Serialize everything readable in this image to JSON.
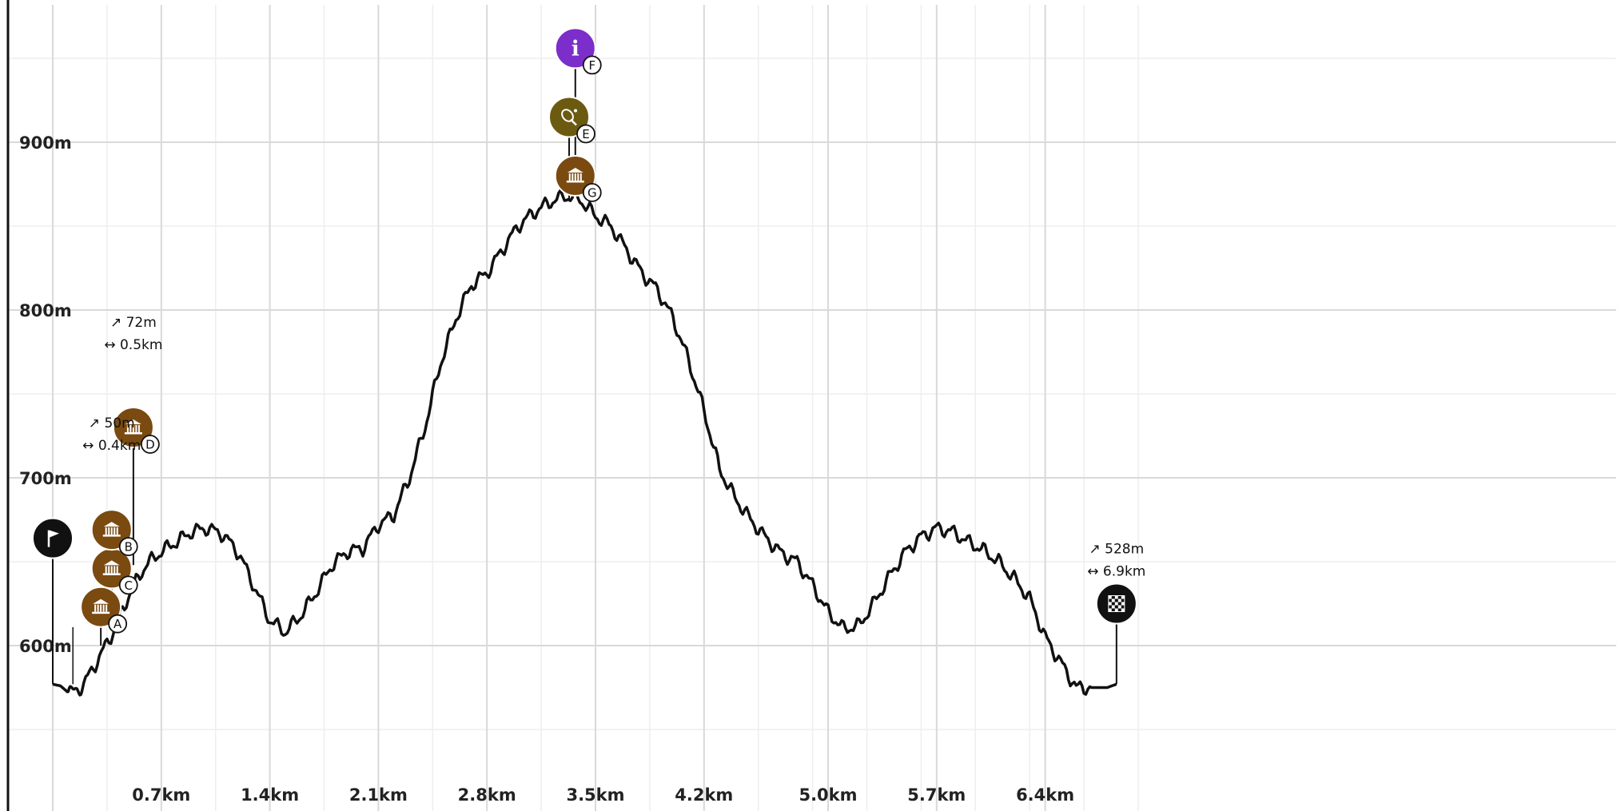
{
  "chart_data": {
    "type": "area",
    "title": "",
    "xlabel": "",
    "ylabel": "",
    "x_unit": "km",
    "y_unit": "m",
    "xlim": [
      0,
      7.0
    ],
    "ylim": [
      500,
      980
    ],
    "y_ticks": [
      {
        "value": 600,
        "label": "600m"
      },
      {
        "value": 700,
        "label": "700m"
      },
      {
        "value": 800,
        "label": "800m"
      },
      {
        "value": 900,
        "label": "900m"
      }
    ],
    "x_ticks": [
      {
        "value": 0.7,
        "label": "0.7km"
      },
      {
        "value": 1.4,
        "label": "1.4km"
      },
      {
        "value": 2.1,
        "label": "2.1km"
      },
      {
        "value": 2.8,
        "label": "2.8km"
      },
      {
        "value": 3.5,
        "label": "3.5km"
      },
      {
        "value": 4.2,
        "label": "4.2km"
      },
      {
        "value": 5.0,
        "label": "5.0km"
      },
      {
        "value": 5.7,
        "label": "5.7km"
      },
      {
        "value": 6.4,
        "label": "6.4km"
      }
    ],
    "grid": true,
    "series": [
      {
        "x": [
          0,
          0.05,
          0.1,
          0.15,
          0.2,
          0.3,
          0.4,
          0.5,
          0.6,
          0.7,
          0.8,
          0.9,
          1.0,
          1.1,
          1.2,
          1.3,
          1.4,
          1.5,
          1.6,
          1.7,
          1.8,
          1.9,
          2.0,
          2.1,
          2.2,
          2.3,
          2.4,
          2.5,
          2.6,
          2.7,
          2.8,
          2.9,
          3.0,
          3.1,
          3.2,
          3.3,
          3.4,
          3.5,
          3.6,
          3.7,
          3.8,
          3.9,
          4.0,
          4.1,
          4.2,
          4.3,
          4.4,
          4.5,
          4.6,
          4.7,
          4.8,
          4.9,
          5.0,
          5.1,
          5.2,
          5.3,
          5.4,
          5.5,
          5.6,
          5.7,
          5.8,
          5.9,
          6.0,
          6.1,
          6.2,
          6.3,
          6.4,
          6.5,
          6.6,
          6.7,
          6.8,
          6.86
        ],
        "y": [
          577,
          576,
          572,
          573,
          577,
          593,
          610,
          632,
          648,
          656,
          662,
          668,
          670,
          666,
          655,
          635,
          615,
          608,
          618,
          632,
          648,
          656,
          658,
          672,
          678,
          700,
          730,
          768,
          795,
          815,
          822,
          836,
          850,
          858,
          864,
          868,
          866,
          856,
          850,
          836,
          822,
          812,
          795,
          770,
          740,
          705,
          688,
          675,
          664,
          655,
          650,
          636,
          620,
          610,
          612,
          626,
          642,
          656,
          665,
          670,
          668,
          662,
          657,
          650,
          640,
          628,
          605,
          590,
          575,
          575,
          575,
          577
        ]
      }
    ],
    "markers": [
      {
        "id": "start",
        "kind": "flag-icon",
        "x": 0.0,
        "elev": 577,
        "y": 664,
        "color": "#111111",
        "badge": ""
      },
      {
        "id": "A",
        "kind": "museum-icon",
        "x": 0.31,
        "elev": 600,
        "y": 623,
        "color": "#7a4a10",
        "badge": "A"
      },
      {
        "id": "C",
        "kind": "museum-icon",
        "x": 0.38,
        "elev": 622,
        "y": 646,
        "color": "#7a4a10",
        "badge": "C"
      },
      {
        "id": "B",
        "kind": "museum-icon",
        "x": 0.38,
        "elev": 630,
        "y": 669,
        "color": "#7a4a10",
        "badge": "B"
      },
      {
        "id": "D",
        "kind": "museum-icon",
        "x": 0.52,
        "elev": 648,
        "y": 730,
        "color": "#7a4a10",
        "badge": "D"
      },
      {
        "id": "E",
        "kind": "tennis-icon",
        "x": 3.33,
        "elev": 866,
        "y": 915,
        "color": "#6b5a10",
        "badge": "E"
      },
      {
        "id": "F",
        "kind": "info-icon",
        "x": 3.37,
        "elev": 868,
        "y": 956,
        "color": "#7b2ec9",
        "badge": "F"
      },
      {
        "id": "G",
        "kind": "museum-icon",
        "x": 3.37,
        "elev": 868,
        "y": 880,
        "color": "#7a4a10",
        "badge": "G"
      },
      {
        "id": "finish",
        "kind": "finish-flag-icon",
        "x": 6.86,
        "elev": 577,
        "y": 625,
        "color": "#111111",
        "badge": ""
      }
    ],
    "annotations": [
      {
        "ascent": "72m",
        "distance": "0.5km",
        "x": 0.52,
        "y": 790
      },
      {
        "ascent": "50m",
        "distance": "0.4km",
        "x": 0.38,
        "y": 730
      },
      {
        "ascent": "528m",
        "distance": "6.9km",
        "x": 6.86,
        "y": 655
      }
    ],
    "tick_marker_x": 0.13,
    "colors": {
      "line": "#111111",
      "grid_major": "#d9d9d9",
      "grid_minor": "#eeeeee",
      "axis": "#111111"
    }
  }
}
